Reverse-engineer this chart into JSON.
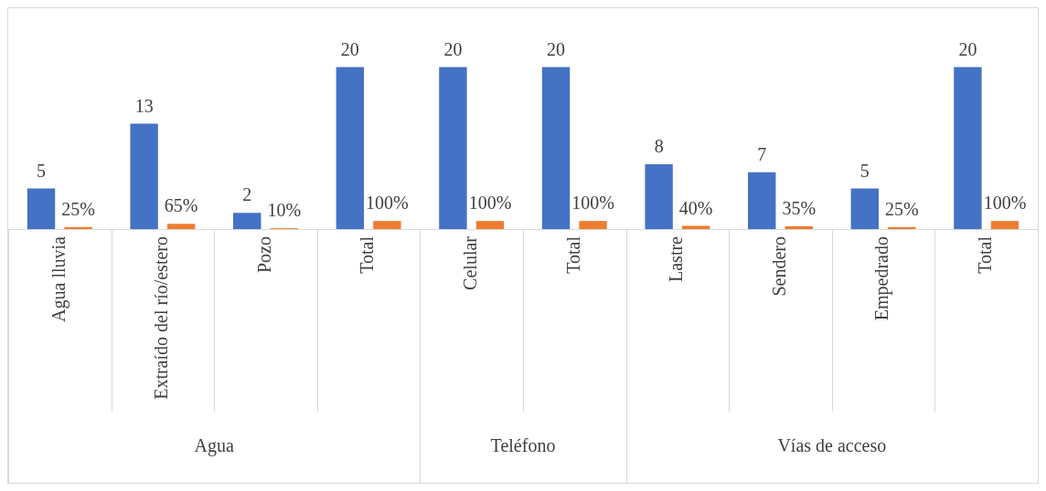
{
  "chart_data": {
    "type": "bar",
    "categories": [
      "Agua lluvia",
      "Extraído del río/estero",
      "Pozo",
      "Total",
      "Celular",
      "Total",
      "Lastre",
      "Sendero",
      "Empedrado",
      "Total"
    ],
    "series": [
      {
        "color": "#4472c4",
        "values": [
          5,
          13,
          2,
          20,
          20,
          20,
          8,
          7,
          5,
          20
        ],
        "value_labels": [
          "5",
          "13",
          "2",
          "20",
          "20",
          "20",
          "8",
          "7",
          "5",
          "20"
        ]
      },
      {
        "color": "#ed7d31",
        "values": [
          0.25,
          0.65,
          0.1,
          1,
          1,
          1,
          0.4,
          0.35,
          0.25,
          1
        ],
        "value_labels": [
          "25%",
          "65%",
          "10%",
          "100%",
          "100%",
          "100%",
          "40%",
          "35%",
          "25%",
          "100%"
        ]
      }
    ],
    "grid": false,
    "legend": false,
    "data_labels": true,
    "annotations": [
      "Agua",
      "Teléfono",
      "Vías de acceso"
    ]
  }
}
